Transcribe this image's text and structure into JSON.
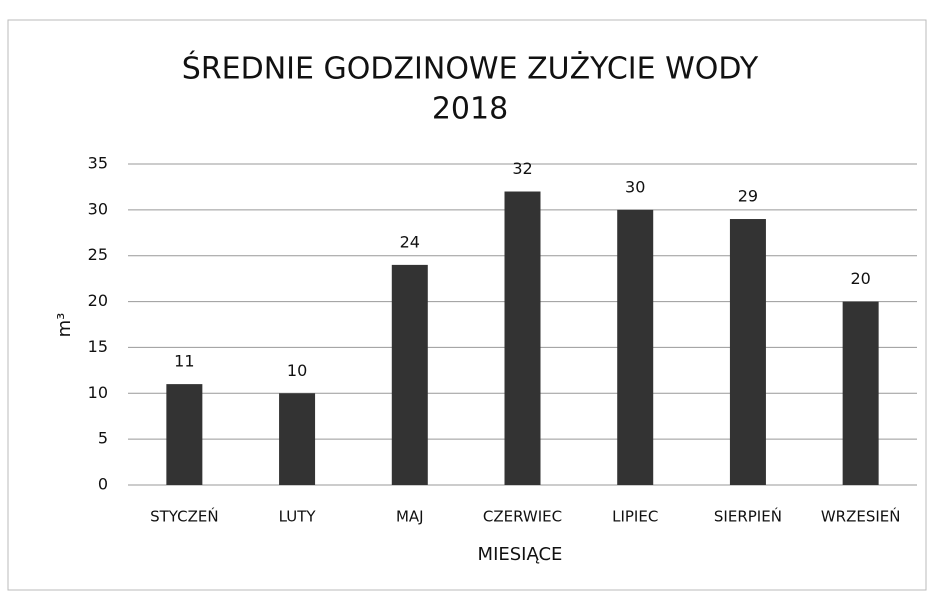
{
  "chart_data": {
    "type": "bar",
    "title": "ŚREDNIE GODZINOWE ZUŻYCIE WODY",
    "subtitle": "2018",
    "x_label": "MIESIĄCE",
    "y_label": "m³",
    "categories": [
      "STYCZEŃ",
      "LUTY",
      "MAJ",
      "CZERWIEC",
      "LIPIEC",
      "SIERPIEŃ",
      "WRZESIEŃ"
    ],
    "values": [
      11,
      10,
      24,
      32,
      30,
      29,
      20
    ],
    "color": "#333333",
    "ylim": [
      0,
      35
    ],
    "yticks": [
      0,
      5,
      10,
      15,
      20,
      25,
      30,
      35
    ],
    "grid": true
  }
}
